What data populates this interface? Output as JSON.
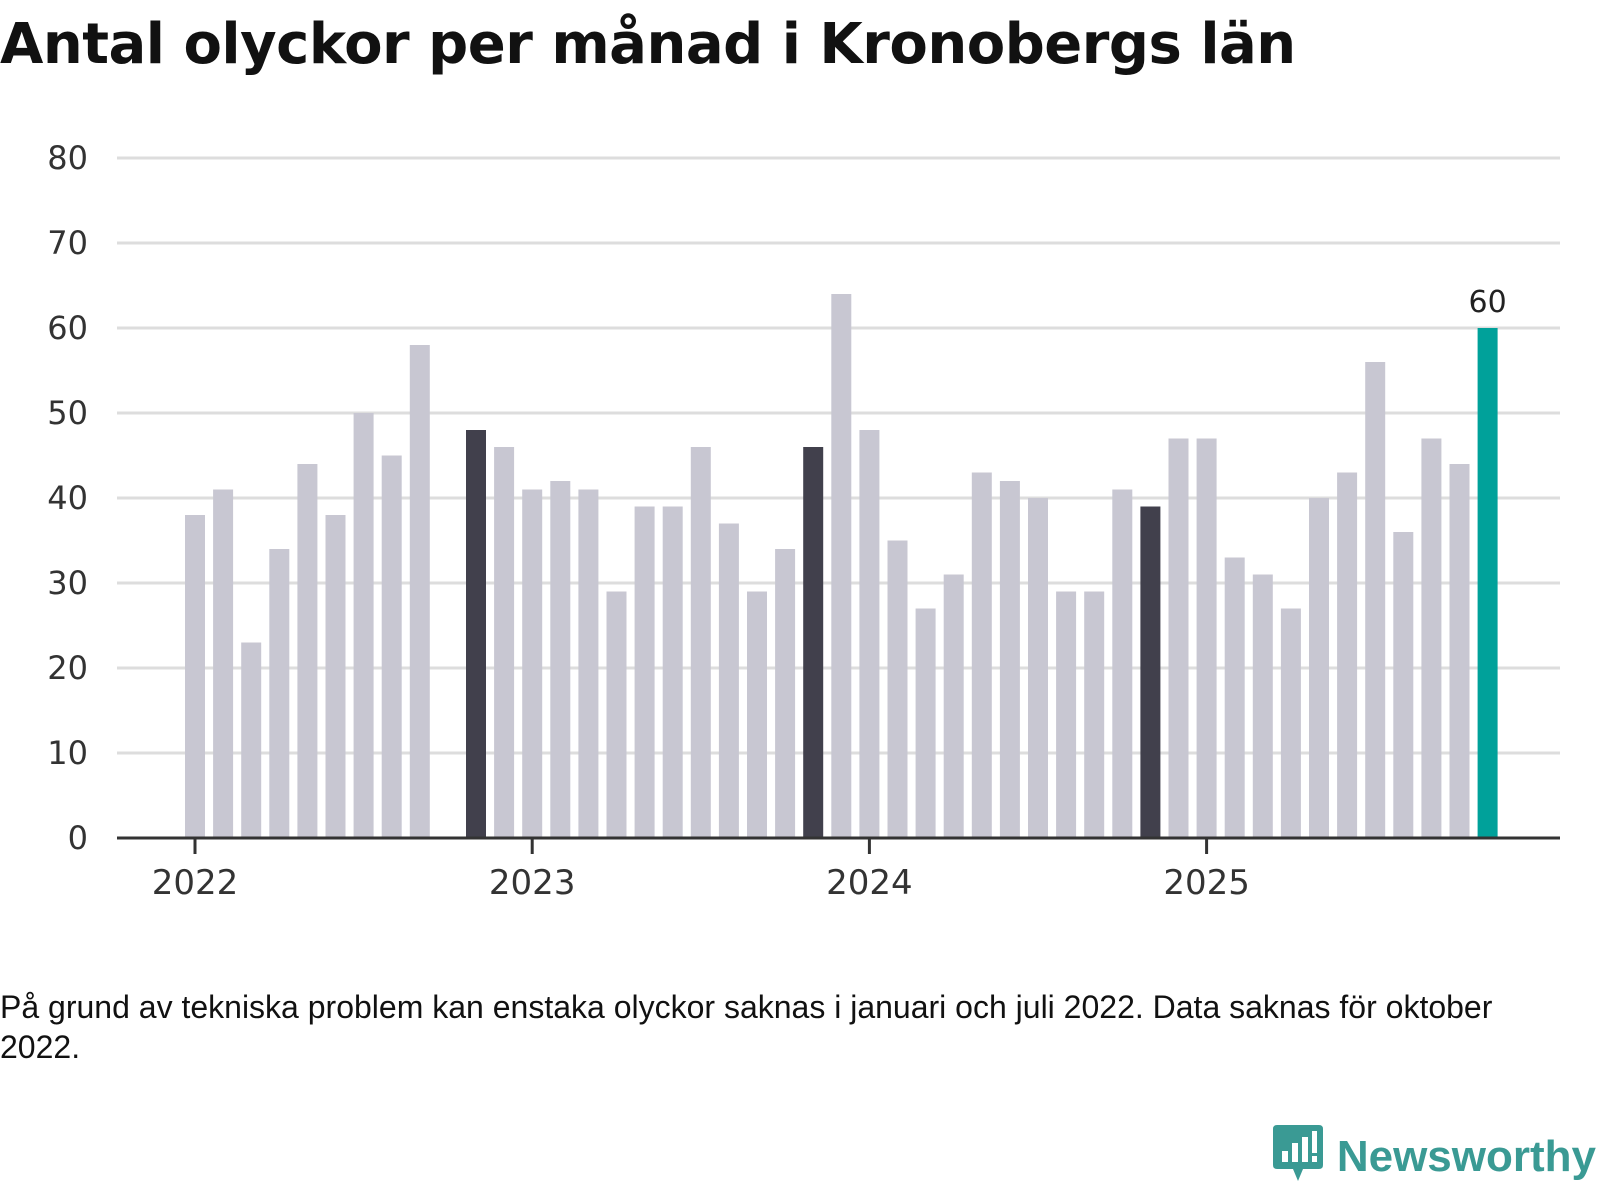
{
  "title": "Antal olyckor per månad i Kronobergs län",
  "footnote": "På grund av tekniska problem kan enstaka olyckor saknas i januari och juli 2022. Data saknas för oktober 2022.",
  "brand": {
    "name": "Newsworthy",
    "icon": "newsworthy-logo-icon"
  },
  "colors": {
    "default": "#c8c7d2",
    "january": "#41404c",
    "latest": "#00a19a",
    "grid": "#dddddd",
    "axis": "#333333"
  },
  "chart_data": {
    "type": "bar",
    "title": "Antal olyckor per månad i Kronobergs län",
    "xlabel": "",
    "ylabel": "",
    "ylim": [
      0,
      80
    ],
    "yticks": [
      0,
      10,
      20,
      30,
      40,
      50,
      60,
      70,
      80
    ],
    "xticks": [
      {
        "label": "2022",
        "index": 0
      },
      {
        "label": "2023",
        "index": 12
      },
      {
        "label": "2024",
        "index": 24
      },
      {
        "label": "2025",
        "index": 36
      }
    ],
    "categories": [
      "2022-01",
      "2022-02",
      "2022-03",
      "2022-04",
      "2022-05",
      "2022-06",
      "2022-07",
      "2022-08",
      "2022-09",
      "2022-10",
      "2022-11",
      "2022-12",
      "2023-01",
      "2023-02",
      "2023-03",
      "2023-04",
      "2023-05",
      "2023-06",
      "2023-07",
      "2023-08",
      "2023-09",
      "2023-10",
      "2023-11",
      "2023-12",
      "2024-01",
      "2024-02",
      "2024-03",
      "2024-04",
      "2024-05",
      "2024-06",
      "2024-07",
      "2024-08",
      "2024-09",
      "2024-10",
      "2024-11",
      "2024-12",
      "2025-01",
      "2025-02",
      "2025-03",
      "2025-04",
      "2025-05",
      "2025-06",
      "2025-07",
      "2025-08",
      "2025-09",
      "2025-10",
      "2025-11",
      "2025-12"
    ],
    "values": [
      38,
      41,
      23,
      34,
      44,
      38,
      50,
      45,
      58,
      null,
      48,
      46,
      41,
      42,
      41,
      29,
      39,
      39,
      46,
      37,
      29,
      34,
      46,
      64,
      48,
      35,
      27,
      31,
      43,
      42,
      40,
      29,
      29,
      41,
      39,
      47,
      47,
      33,
      31,
      27,
      40,
      43,
      56,
      36,
      47,
      44,
      60,
      null
    ],
    "highlight_dark_indices": [
      10,
      22,
      34
    ],
    "highlight_latest_index": 46,
    "data_labels": [
      {
        "index": 46,
        "text": "60"
      }
    ]
  }
}
